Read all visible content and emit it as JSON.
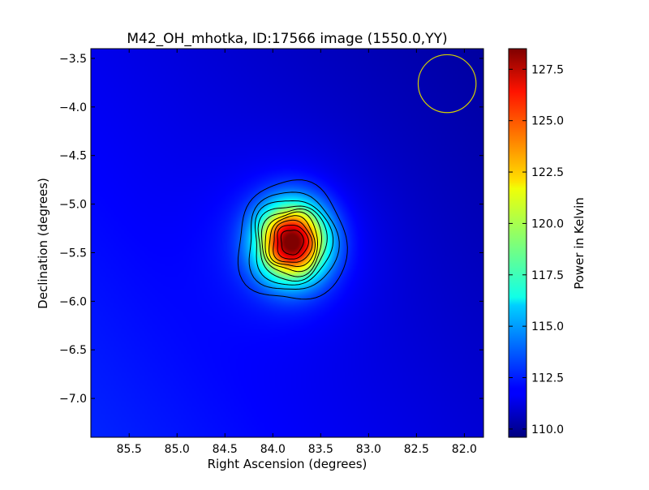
{
  "chart_data": {
    "type": "heatmap",
    "title": "M42_OH_mhotka, ID:17566 image (1550.0,YY)",
    "xlabel": "Right Ascension (degrees)",
    "ylabel": "Declination (degrees)",
    "colorbar_label": "Power in Kelvin",
    "colormap": "jet",
    "xlim": [
      85.9,
      81.8
    ],
    "ylim": [
      -7.4,
      -3.4
    ],
    "x_ticks": [
      85.5,
      85.0,
      84.5,
      84.0,
      83.5,
      83.0,
      82.5,
      82.0
    ],
    "x_tick_labels": [
      "85.5",
      "85.0",
      "84.5",
      "84.0",
      "83.5",
      "83.0",
      "82.5",
      "82.0"
    ],
    "y_ticks": [
      -3.5,
      -4.0,
      -4.5,
      -5.0,
      -5.5,
      -6.0,
      -6.5,
      -7.0
    ],
    "y_tick_labels": [
      "−3.5",
      "−4.0",
      "−4.5",
      "−5.0",
      "−5.5",
      "−6.0",
      "−6.5",
      "−7.0"
    ],
    "colorbar_range": [
      109.6,
      128.5
    ],
    "colorbar_ticks": [
      110.0,
      112.5,
      115.0,
      117.5,
      120.0,
      122.5,
      125.0,
      127.5
    ],
    "colorbar_tick_labels": [
      "110.0",
      "112.5",
      "115.0",
      "117.5",
      "120.0",
      "122.5",
      "125.0",
      "127.5"
    ],
    "background_level_kelvin": 111.4,
    "peak": {
      "ra": 83.8,
      "dec": -5.39,
      "kelvin": 128.3
    },
    "contour_levels_kelvin": [
      113.0,
      114.5,
      116.0,
      117.5,
      119.0,
      120.5,
      122.0,
      123.5,
      125.0,
      126.5
    ],
    "beam_marker": {
      "ra": 82.18,
      "dec": -3.76,
      "radius_deg": 0.3,
      "color": "#d4d000"
    }
  }
}
